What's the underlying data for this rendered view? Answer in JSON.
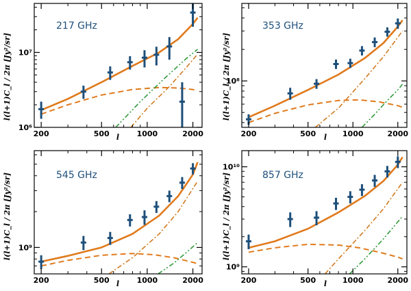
{
  "colors": {
    "total": "#e07a1c",
    "poisson": "#e07a1c",
    "one_halo": "#d27a20",
    "two_halo": "#e07a1c",
    "sz": "#2f9a3a",
    "data": "#1d4f7a",
    "frame": "#000000"
  },
  "chart_data": [
    {
      "type": "line",
      "title": "217 GHz",
      "xlabel": "l",
      "ylabel": "l(l+1)C_l / 2π [Jy²/sr]",
      "xlim": [
        180,
        2300
      ],
      "ylim": [
        1000000.0,
        45000000.0
      ],
      "xticks": [
        200,
        500,
        1000,
        2000
      ],
      "xtick_labels": [
        "200",
        "500",
        "1000",
        "2000"
      ],
      "yticks": [
        1000000.0,
        10000000.0
      ],
      "ytick_labels": [
        "10⁶",
        "10⁷"
      ],
      "points": [
        {
          "x": 200,
          "y": 1750000.0,
          "err": 450000.0
        },
        {
          "x": 380,
          "y": 3000000.0,
          "err": 600000.0
        },
        {
          "x": 570,
          "y": 5400000.0,
          "err": 1100000.0
        },
        {
          "x": 770,
          "y": 7400000.0,
          "err": 1500000.0
        },
        {
          "x": 960,
          "y": 8500000.0,
          "err": 2200000.0
        },
        {
          "x": 1150,
          "y": 9300000.0,
          "err": 2600000.0
        },
        {
          "x": 1400,
          "y": 12000000.0,
          "err": 4000000.0
        },
        {
          "x": 1700,
          "y": 2200000.0,
          "err": 1800000.0
        },
        {
          "x": 2000,
          "y": 34000000.0,
          "err": 12000000.0
        }
      ],
      "series": [
        {
          "name": "total",
          "style": "solid",
          "x": [
            200,
            300,
            500,
            800,
            1200,
            1600,
            2000,
            2150
          ],
          "y": [
            1700000.0,
            2400000.0,
            4000000.0,
            6600000.0,
            10000000.0,
            15000000.0,
            24000000.0,
            29000000.0
          ]
        },
        {
          "name": "two-halo",
          "style": "dashed",
          "x": [
            200,
            300,
            500,
            800,
            1200,
            1600,
            2000,
            2150
          ],
          "y": [
            1500000.0,
            2000000.0,
            2700000.0,
            3200000.0,
            3400000.0,
            3350000.0,
            3200000.0,
            3100000.0
          ]
        },
        {
          "name": "one-halo",
          "style": "dashdot",
          "x": [
            780,
            1000,
            1400,
            1800,
            2150
          ],
          "y": [
            1000000.0,
            1800000.0,
            3500000.0,
            6200000.0,
            9500000.0
          ]
        },
        {
          "name": "sz",
          "style": "dashdotdot",
          "x": [
            620,
            900,
            1300,
            1800,
            2150
          ],
          "y": [
            1000000.0,
            2200000.0,
            4500000.0,
            8200000.0,
            11000000.0
          ]
        }
      ]
    },
    {
      "type": "line",
      "title": "353 GHz",
      "xlabel": "l",
      "ylabel": "l(l+1)C_l / 2π [Jy²/sr]",
      "xlim": [
        180,
        2300
      ],
      "ylim": [
        36000000.0,
        550000000.0
      ],
      "xticks": [
        200,
        500,
        1000,
        2000
      ],
      "xtick_labels": [
        "200",
        "500",
        "1000",
        "2000"
      ],
      "yticks": [
        100000000.0
      ],
      "ytick_labels": [
        "10⁸"
      ],
      "points": [
        {
          "x": 200,
          "y": 43000000.0,
          "err": 5000000.0
        },
        {
          "x": 380,
          "y": 76000000.0,
          "err": 10000000.0
        },
        {
          "x": 570,
          "y": 94000000.0,
          "err": 10000000.0
        },
        {
          "x": 770,
          "y": 145000000.0,
          "err": 15000000.0
        },
        {
          "x": 960,
          "y": 148000000.0,
          "err": 15000000.0
        },
        {
          "x": 1150,
          "y": 195000000.0,
          "err": 20000000.0
        },
        {
          "x": 1400,
          "y": 235000000.0,
          "err": 25000000.0
        },
        {
          "x": 1700,
          "y": 295000000.0,
          "err": 30000000.0
        },
        {
          "x": 2000,
          "y": 355000000.0,
          "err": 40000000.0
        }
      ],
      "series": [
        {
          "name": "total",
          "style": "solid",
          "x": [
            200,
            300,
            500,
            800,
            1200,
            1600,
            2000,
            2150
          ],
          "y": [
            45000000.0,
            58000000.0,
            82000000.0,
            115000000.0,
            165000000.0,
            230000000.0,
            330000000.0,
            380000000.0
          ]
        },
        {
          "name": "two-halo",
          "style": "dashed",
          "x": [
            200,
            300,
            500,
            800,
            1100,
            1500,
            2000,
            2150
          ],
          "y": [
            40000000.0,
            49000000.0,
            59000000.0,
            65000000.0,
            66000000.0,
            63000000.0,
            58000000.0,
            56000000.0
          ]
        },
        {
          "name": "one-halo",
          "style": "dashdot",
          "x": [
            560,
            800,
            1200,
            1600,
            2150
          ],
          "y": [
            36000000.0,
            55000000.0,
            105000000.0,
            170000000.0,
            300000000.0
          ]
        },
        {
          "name": "sz",
          "style": "dashdotdot",
          "x": [
            1150,
            1400,
            1700,
            2000,
            2150
          ],
          "y": [
            36000000.0,
            48000000.0,
            65000000.0,
            82000000.0,
            93000000.0
          ]
        }
      ]
    },
    {
      "type": "line",
      "title": "545 GHz",
      "xlabel": "l",
      "ylabel": "l(l+1)C_l / 2π [Jy²/sr]",
      "xlim": [
        180,
        2300
      ],
      "ylim": [
        600000000.0,
        6500000000.0
      ],
      "xticks": [
        200,
        500,
        1000,
        2000
      ],
      "xtick_labels": [
        "200",
        "500",
        "1000",
        "2000"
      ],
      "yticks": [
        1000000000.0
      ],
      "ytick_labels": [
        "10⁹"
      ],
      "points": [
        {
          "x": 200,
          "y": 760000000.0,
          "err": 100000000.0
        },
        {
          "x": 380,
          "y": 1100000000.0,
          "err": 150000000.0
        },
        {
          "x": 570,
          "y": 1200000000.0,
          "err": 150000000.0
        },
        {
          "x": 770,
          "y": 1700000000.0,
          "err": 200000000.0
        },
        {
          "x": 960,
          "y": 1800000000.0,
          "err": 250000000.0
        },
        {
          "x": 1150,
          "y": 2200000000.0,
          "err": 250000000.0
        },
        {
          "x": 1400,
          "y": 2700000000.0,
          "err": 300000000.0
        },
        {
          "x": 1700,
          "y": 3500000000.0,
          "err": 400000000.0
        },
        {
          "x": 2000,
          "y": 4600000000.0,
          "err": 500000000.0
        }
      ],
      "series": [
        {
          "name": "total",
          "style": "solid",
          "x": [
            200,
            300,
            500,
            800,
            1200,
            1600,
            2000,
            2150
          ],
          "y": [
            760000000.0,
            850000000.0,
            1000000000.0,
            1300000000.0,
            1850000000.0,
            2700000000.0,
            4100000000.0,
            5200000000.0
          ]
        },
        {
          "name": "two-halo",
          "style": "dashed",
          "x": [
            200,
            300,
            500,
            800,
            1100,
            1500,
            2000,
            2150
          ],
          "y": [
            700000000.0,
            780000000.0,
            860000000.0,
            890000000.0,
            870000000.0,
            820000000.0,
            750000000.0,
            730000000.0
          ]
        },
        {
          "name": "one-halo",
          "style": "dashdot",
          "x": [
            560,
            800,
            1200,
            1600,
            2150
          ],
          "y": [
            600000000.0,
            820000000.0,
            1300000000.0,
            2000000000.0,
            3600000000.0
          ]
        },
        {
          "name": "sz",
          "style": "dashdotdot",
          "x": [
            1180,
            1500,
            1800,
            2150
          ],
          "y": [
            600000000.0,
            740000000.0,
            900000000.0,
            1100000000.0
          ]
        }
      ]
    },
    {
      "type": "line",
      "title": "857 GHz",
      "xlabel": "l",
      "ylabel": "l(l+1)C_l / 2π [Jy²/sr]",
      "xlim": [
        180,
        2300
      ],
      "ylim": [
        850000000.0,
        14500000000.0
      ],
      "xticks": [
        200,
        500,
        1000,
        2000
      ],
      "xtick_labels": [
        "200",
        "500",
        "1000",
        "2000"
      ],
      "yticks": [
        1000000000.0,
        10000000000.0
      ],
      "ytick_labels": [
        "10⁹",
        "10¹⁰"
      ],
      "points": [
        {
          "x": 200,
          "y": 1800000000.0,
          "err": 300000000.0
        },
        {
          "x": 380,
          "y": 3000000000.0,
          "err": 500000000.0
        },
        {
          "x": 570,
          "y": 3100000000.0,
          "err": 500000000.0
        },
        {
          "x": 770,
          "y": 4300000000.0,
          "err": 600000000.0
        },
        {
          "x": 960,
          "y": 5000000000.0,
          "err": 700000000.0
        },
        {
          "x": 1150,
          "y": 5900000000.0,
          "err": 800000000.0
        },
        {
          "x": 1400,
          "y": 7300000000.0,
          "err": 1000000000.0
        },
        {
          "x": 1700,
          "y": 9000000000.0,
          "err": 1200000000.0
        },
        {
          "x": 2000,
          "y": 11200000000.0,
          "err": 1500000000.0
        }
      ],
      "series": [
        {
          "name": "total",
          "style": "solid",
          "x": [
            200,
            300,
            500,
            800,
            1200,
            1600,
            2000,
            2150
          ],
          "y": [
            1550000000.0,
            1800000000.0,
            2400000000.0,
            3500000000.0,
            5100000000.0,
            7200000000.0,
            10500000000.0,
            12500000000.0
          ]
        },
        {
          "name": "two-halo",
          "style": "dashed",
          "x": [
            200,
            300,
            500,
            800,
            1100,
            1500,
            2000,
            2150
          ],
          "y": [
            1400000000.0,
            1550000000.0,
            1680000000.0,
            1650000000.0,
            1550000000.0,
            1400000000.0,
            1250000000.0,
            1200000000.0
          ]
        },
        {
          "name": "one-halo",
          "style": "dashdot",
          "x": [
            650,
            800,
            1200,
            1600,
            2150
          ],
          "y": [
            850000000.0,
            1200000000.0,
            2300000000.0,
            3800000000.0,
            7000000000.0
          ]
        },
        {
          "name": "sz",
          "style": "dashdotdot",
          "x": [
            950,
            1200,
            1600,
            2150
          ],
          "y": [
            850000000.0,
            1200000000.0,
            1900000000.0,
            3200000000.0
          ]
        }
      ]
    }
  ]
}
